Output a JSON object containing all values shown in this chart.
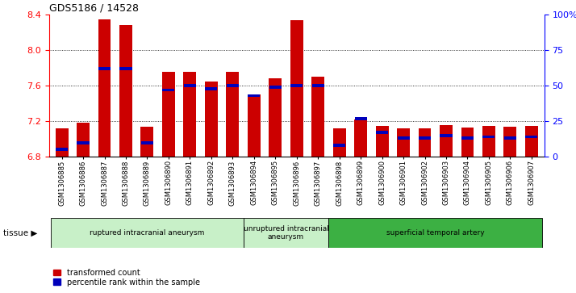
{
  "title": "GDS5186 / 14528",
  "samples": [
    "GSM1306885",
    "GSM1306886",
    "GSM1306887",
    "GSM1306888",
    "GSM1306889",
    "GSM1306890",
    "GSM1306891",
    "GSM1306892",
    "GSM1306893",
    "GSM1306894",
    "GSM1306895",
    "GSM1306896",
    "GSM1306897",
    "GSM1306898",
    "GSM1306899",
    "GSM1306900",
    "GSM1306901",
    "GSM1306902",
    "GSM1306903",
    "GSM1306904",
    "GSM1306905",
    "GSM1306906",
    "GSM1306907"
  ],
  "transformed_counts": [
    7.12,
    7.18,
    8.35,
    8.28,
    7.14,
    7.76,
    7.76,
    7.65,
    7.76,
    7.5,
    7.68,
    8.34,
    7.7,
    7.12,
    7.22,
    7.15,
    7.12,
    7.12,
    7.16,
    7.13,
    7.15,
    7.14,
    7.15
  ],
  "percentile_ranks": [
    5,
    10,
    62,
    62,
    10,
    47,
    50,
    48,
    50,
    43,
    49,
    50,
    50,
    8,
    27,
    17,
    13,
    13,
    15,
    13,
    14,
    13,
    14
  ],
  "groups": [
    {
      "label": "ruptured intracranial aneurysm",
      "start": 0,
      "end": 8,
      "color": "#c8f0c8"
    },
    {
      "label": "unruptured intracranial\naneurysm",
      "start": 9,
      "end": 12,
      "color": "#c8f0c8"
    },
    {
      "label": "superficial temporal artery",
      "start": 13,
      "end": 22,
      "color": "#3cb043"
    }
  ],
  "y_min": 6.8,
  "y_max": 8.4,
  "y_ticks": [
    6.8,
    7.2,
    7.6,
    8.0,
    8.4
  ],
  "right_y_ticks": [
    0,
    25,
    50,
    75,
    100
  ],
  "right_y_labels": [
    "0",
    "25",
    "50",
    "75",
    "100%"
  ],
  "bar_color_red": "#cc0000",
  "bar_color_blue": "#0000bb",
  "plot_bg": "#ffffff",
  "legend_items": [
    {
      "color": "#cc0000",
      "label": "transformed count"
    },
    {
      "color": "#0000bb",
      "label": "percentile rank within the sample"
    }
  ]
}
